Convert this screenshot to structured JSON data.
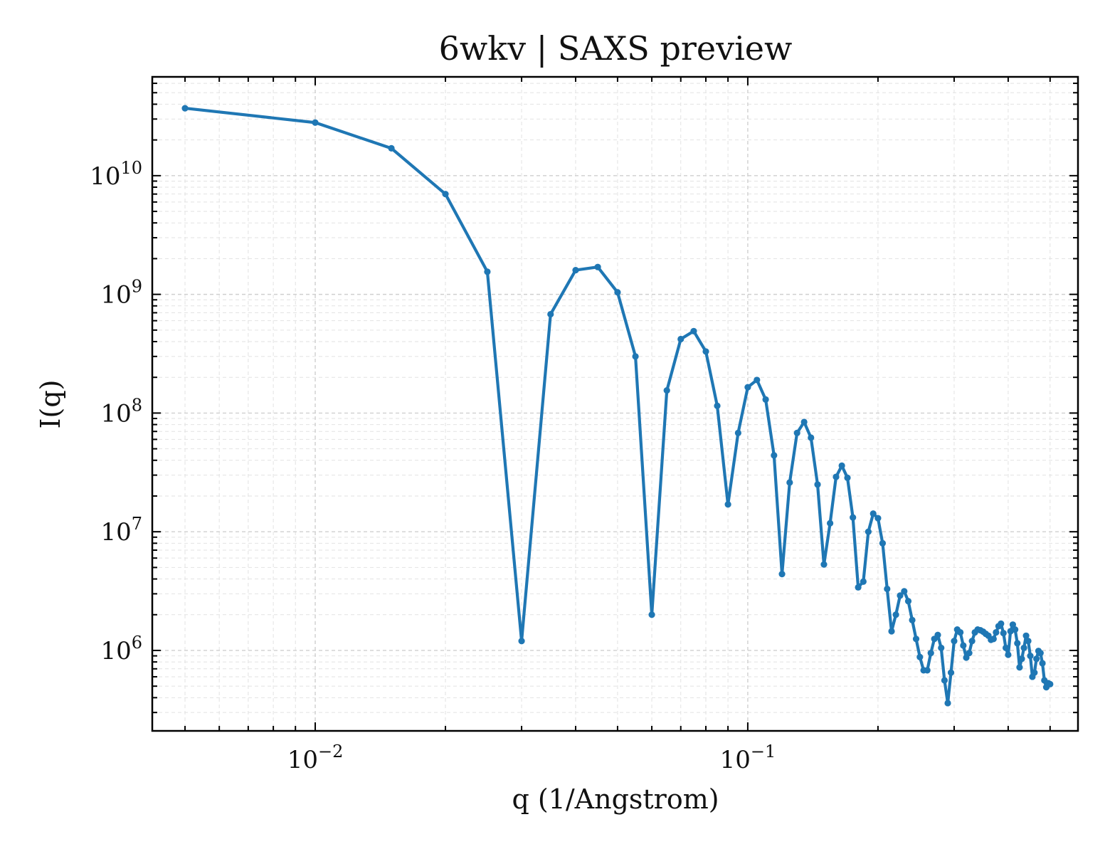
{
  "chart_data": {
    "type": "line",
    "title": "6wkv | SAXS preview",
    "xlabel": "q (1/Angstrom)",
    "ylabel": "I(q)",
    "xscale": "log",
    "yscale": "log",
    "xlim": [
      0.0042,
      0.58
    ],
    "ylim": [
      210000,
      68000000000
    ],
    "grid": true,
    "legend": "none",
    "line_color": "#1f77b4",
    "x_ticks": [
      {
        "value": 0.01,
        "base": "10",
        "exp": "−2"
      },
      {
        "value": 0.1,
        "base": "10",
        "exp": "−1"
      }
    ],
    "y_ticks": [
      {
        "value": 1000000,
        "base": "10",
        "exp": "6"
      },
      {
        "value": 10000000,
        "base": "10",
        "exp": "7"
      },
      {
        "value": 100000000,
        "base": "10",
        "exp": "8"
      },
      {
        "value": 1000000000,
        "base": "10",
        "exp": "9"
      },
      {
        "value": 10000000000,
        "base": "10",
        "exp": "10"
      }
    ],
    "series": [
      {
        "x": [
          0.005,
          0.01,
          0.015,
          0.02,
          0.025,
          0.03,
          0.035,
          0.04,
          0.045,
          0.05,
          0.055,
          0.06,
          0.065,
          0.07,
          0.075,
          0.08,
          0.085,
          0.09,
          0.095,
          0.1,
          0.105,
          0.11,
          0.115,
          0.12,
          0.125,
          0.13,
          0.135,
          0.14,
          0.145,
          0.15,
          0.155,
          0.16,
          0.165,
          0.17,
          0.175,
          0.18,
          0.185,
          0.19,
          0.195,
          0.2,
          0.205,
          0.21,
          0.215,
          0.22,
          0.225,
          0.23,
          0.235,
          0.24,
          0.245,
          0.25,
          0.255,
          0.26,
          0.265,
          0.27,
          0.275,
          0.28,
          0.285,
          0.29,
          0.295,
          0.3,
          0.305,
          0.31,
          0.315,
          0.32,
          0.325,
          0.33,
          0.335,
          0.34,
          0.345,
          0.35,
          0.355,
          0.36,
          0.365,
          0.37,
          0.375,
          0.38,
          0.385,
          0.39,
          0.395,
          0.4,
          0.405,
          0.41,
          0.415,
          0.42,
          0.425,
          0.43,
          0.435,
          0.44,
          0.445,
          0.45,
          0.455,
          0.46,
          0.465,
          0.47,
          0.475,
          0.48,
          0.485,
          0.49,
          0.495,
          0.5
        ],
        "y": [
          37000000000,
          28000000000,
          17000000000,
          7000000000,
          1550000000,
          1200000,
          680000000,
          1600000000,
          1700000000,
          1040000000,
          300000000,
          2000000,
          155000000,
          420000000,
          490000000,
          330000000,
          115000000,
          17000000,
          68000000,
          165000000,
          190000000,
          130000000,
          44000000,
          4400000,
          26000000,
          68000000,
          84000000,
          62000000,
          25000000,
          5300000,
          11800000,
          29000000,
          36000000,
          28500000,
          13200000,
          3400000,
          3800000,
          10000000,
          14200000,
          13000000,
          8000000,
          3300000,
          1450000,
          2000000,
          2900000,
          3150000,
          2600000,
          1800000,
          1250000,
          880000,
          680000,
          680000,
          950000,
          1250000,
          1350000,
          1050000,
          560000,
          360000,
          650000,
          1200000,
          1500000,
          1420000,
          1100000,
          870000,
          950000,
          1200000,
          1420000,
          1500000,
          1480000,
          1440000,
          1380000,
          1330000,
          1230000,
          1250000,
          1420000,
          1600000,
          1680000,
          1400000,
          1050000,
          920000,
          1450000,
          1650000,
          1500000,
          1150000,
          720000,
          850000,
          1050000,
          1330000,
          1200000,
          900000,
          600000,
          650000,
          850000,
          990000,
          950000,
          780000,
          560000,
          490000,
          530000,
          520000
        ]
      }
    ]
  }
}
